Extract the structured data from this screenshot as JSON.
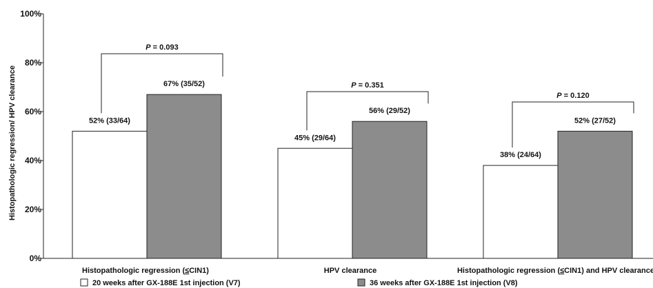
{
  "chart_data": {
    "type": "bar",
    "ylabel": "Histopathologic regression/ HPV clearance",
    "ylim": [
      0,
      100
    ],
    "yticks": [
      "0%",
      "20%",
      "40%",
      "60%",
      "80%",
      "100%"
    ],
    "grid": false,
    "categories": [
      [
        "Histopathologic regression (",
        "≤",
        "CIN1)"
      ],
      [
        "HPV clearance"
      ],
      [
        "Histopathologic regression (",
        "≤",
        "CIN1) and HPV clearance"
      ]
    ],
    "series": [
      {
        "name": "20 weeks after GX-188E 1st injection (V7)",
        "color": "#ffffff",
        "values": [
          52,
          45,
          38
        ],
        "labels": [
          "52% (33/64)",
          "45% (29/64)",
          "38% (24/64)"
        ]
      },
      {
        "name": "36 weeks after GX-188E 1st injection (V8)",
        "color": "#8c8c8c",
        "values": [
          67,
          56,
          52
        ],
        "labels": [
          "67% (35/52)",
          "56% (29/52)",
          "52% (27/52)"
        ]
      }
    ],
    "p_values": [
      {
        "prefix": "P",
        "text": " = 0.093"
      },
      {
        "prefix": "P",
        "text": " = 0.351"
      },
      {
        "prefix": "P",
        "text": " = 0.120"
      }
    ],
    "legend_position": "bottom"
  }
}
